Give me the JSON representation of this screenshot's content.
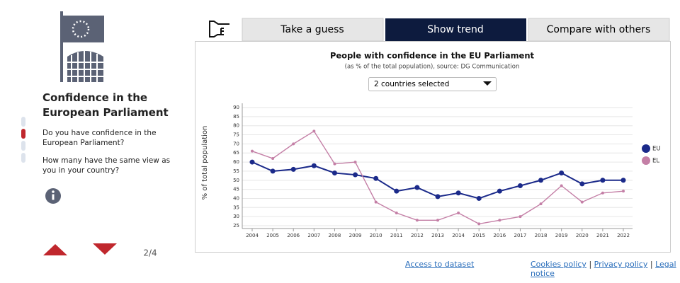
{
  "panel": {
    "title": "Confidence in the European Parliament",
    "questions": [
      "Do you have confidence in the European Parliament?",
      "How many have the same view as you in your country?"
    ],
    "pager": "2/4"
  },
  "tabs": [
    "Take a guess",
    "Show trend",
    "Compare with others"
  ],
  "selector": "2 countries selected",
  "chart_data": {
    "type": "line",
    "title": "People with confidence in the EU Parliament",
    "subtitle": "(as % of the total population), source: DG Communication",
    "y_label": "% of total population",
    "categories": [
      "2004",
      "2005",
      "2006",
      "2007",
      "2008",
      "2009",
      "2010",
      "2011",
      "2012",
      "2013",
      "2014",
      "2015",
      "2016",
      "2017",
      "2018",
      "2019",
      "2020",
      "2021",
      "2022"
    ],
    "series": [
      {
        "name": "EU",
        "color": "#1b2a8a",
        "values": [
          60,
          55,
          56,
          58,
          54,
          53,
          51,
          44,
          46,
          41,
          43,
          40,
          44,
          47,
          50,
          54,
          48,
          50,
          50
        ]
      },
      {
        "name": "EL",
        "color": "#c47fa6",
        "values": [
          66,
          62,
          70,
          77,
          59,
          60,
          38,
          32,
          28,
          28,
          32,
          26,
          28,
          30,
          37,
          47,
          38,
          43,
          44
        ]
      }
    ],
    "ylim": [
      25,
      90
    ],
    "yticks": [
      25,
      30,
      35,
      40,
      45,
      50,
      55,
      60,
      65,
      70,
      75,
      80,
      85,
      90
    ],
    "grid": true,
    "legend": "right"
  },
  "footer": {
    "dataset": "Access to dataset",
    "links": [
      "Cookies policy",
      "Privacy policy",
      "Legal notice"
    ]
  }
}
